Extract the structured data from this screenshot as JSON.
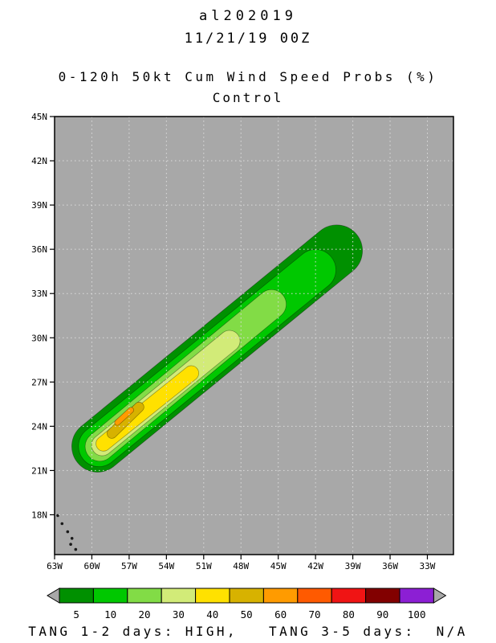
{
  "header": {
    "storm_id": "al202019",
    "datetime": "11/21/19 00Z",
    "product_title": "0-120h 50kt Cum Wind Speed Probs (%)",
    "model": "Control"
  },
  "footer": {
    "text": "TANG 1-2 days: HIGH,   TANG 3-5 days:  N/A"
  },
  "chart_data": {
    "type": "filled_contour_map",
    "title": "0-120h 50kt Cum Wind Speed Probs (%)",
    "subtitle": "Control",
    "units": "%",
    "map": {
      "background_color": "#a8a8a8",
      "lon_range": [
        -63,
        -30.9
      ],
      "lat_range": [
        15.3,
        45
      ],
      "grid_interval_deg": 3,
      "grid_style": "dotted",
      "grid_color": "#dcdcdc",
      "lat_ticks": [
        {
          "value": 45,
          "label": "45N"
        },
        {
          "value": 42,
          "label": "42N"
        },
        {
          "value": 39,
          "label": "39N"
        },
        {
          "value": 36,
          "label": "36N"
        },
        {
          "value": 33,
          "label": "33N"
        },
        {
          "value": 30,
          "label": "30N"
        },
        {
          "value": 27,
          "label": "27N"
        },
        {
          "value": 24,
          "label": "24N"
        },
        {
          "value": 21,
          "label": "21N"
        },
        {
          "value": 18,
          "label": "18N"
        }
      ],
      "lon_ticks": [
        {
          "value": -63,
          "label": "63W"
        },
        {
          "value": -60,
          "label": "60W"
        },
        {
          "value": -57,
          "label": "57W"
        },
        {
          "value": -54,
          "label": "54W"
        },
        {
          "value": -51,
          "label": "51W"
        },
        {
          "value": -48,
          "label": "48W"
        },
        {
          "value": -45,
          "label": "45W"
        },
        {
          "value": -42,
          "label": "42W"
        },
        {
          "value": -39,
          "label": "39W"
        },
        {
          "value": -36,
          "label": "36W"
        },
        {
          "value": -33,
          "label": "33W"
        }
      ],
      "islands": [
        [
          -62.74,
          17.95
        ],
        [
          -62.4,
          17.4
        ],
        [
          -61.95,
          16.85
        ],
        [
          -61.6,
          16.4
        ],
        [
          -61.7,
          16.0
        ],
        [
          -61.3,
          15.65
        ]
      ]
    },
    "contours": [
      {
        "level": 5,
        "color": "#009000",
        "from": [
          -59.6,
          22.6
        ],
        "to": [
          -40.3,
          35.9
        ],
        "half_width_deg": 1.9
      },
      {
        "level": 10,
        "color": "#00c800",
        "from": [
          -59.5,
          22.6
        ],
        "to": [
          -42.0,
          34.6
        ],
        "half_width_deg": 1.5
      },
      {
        "level": 20,
        "color": "#82dc46",
        "from": [
          -59.4,
          22.6
        ],
        "to": [
          -45.5,
          32.3
        ],
        "half_width_deg": 1.08
      },
      {
        "level": 30,
        "color": "#d2eb78",
        "from": [
          -59.2,
          22.7
        ],
        "to": [
          -48.9,
          29.8
        ],
        "half_width_deg": 0.78
      },
      {
        "level": 40,
        "color": "#ffe100",
        "from": [
          -59.1,
          22.8
        ],
        "to": [
          -52.0,
          27.6
        ],
        "half_width_deg": 0.55
      },
      {
        "level": 50,
        "color": "#d7b200",
        "from": [
          -58.4,
          23.5
        ],
        "to": [
          -56.2,
          25.3
        ],
        "half_width_deg": 0.36
      },
      {
        "level": 60,
        "color": "#ff9b00",
        "from": [
          -57.95,
          24.25
        ],
        "to": [
          -56.85,
          25.1
        ],
        "half_width_deg": 0.2
      }
    ],
    "colorbar": {
      "levels": [
        5,
        10,
        20,
        30,
        40,
        50,
        60,
        70,
        80,
        90,
        100
      ],
      "colors": [
        "#009000",
        "#00c800",
        "#82dc46",
        "#d2eb78",
        "#ffe100",
        "#d7b200",
        "#ff9b00",
        "#ff5a00",
        "#f01414",
        "#820000",
        "#8c1fd4"
      ],
      "arrow_color": "#a8a8a8"
    }
  }
}
